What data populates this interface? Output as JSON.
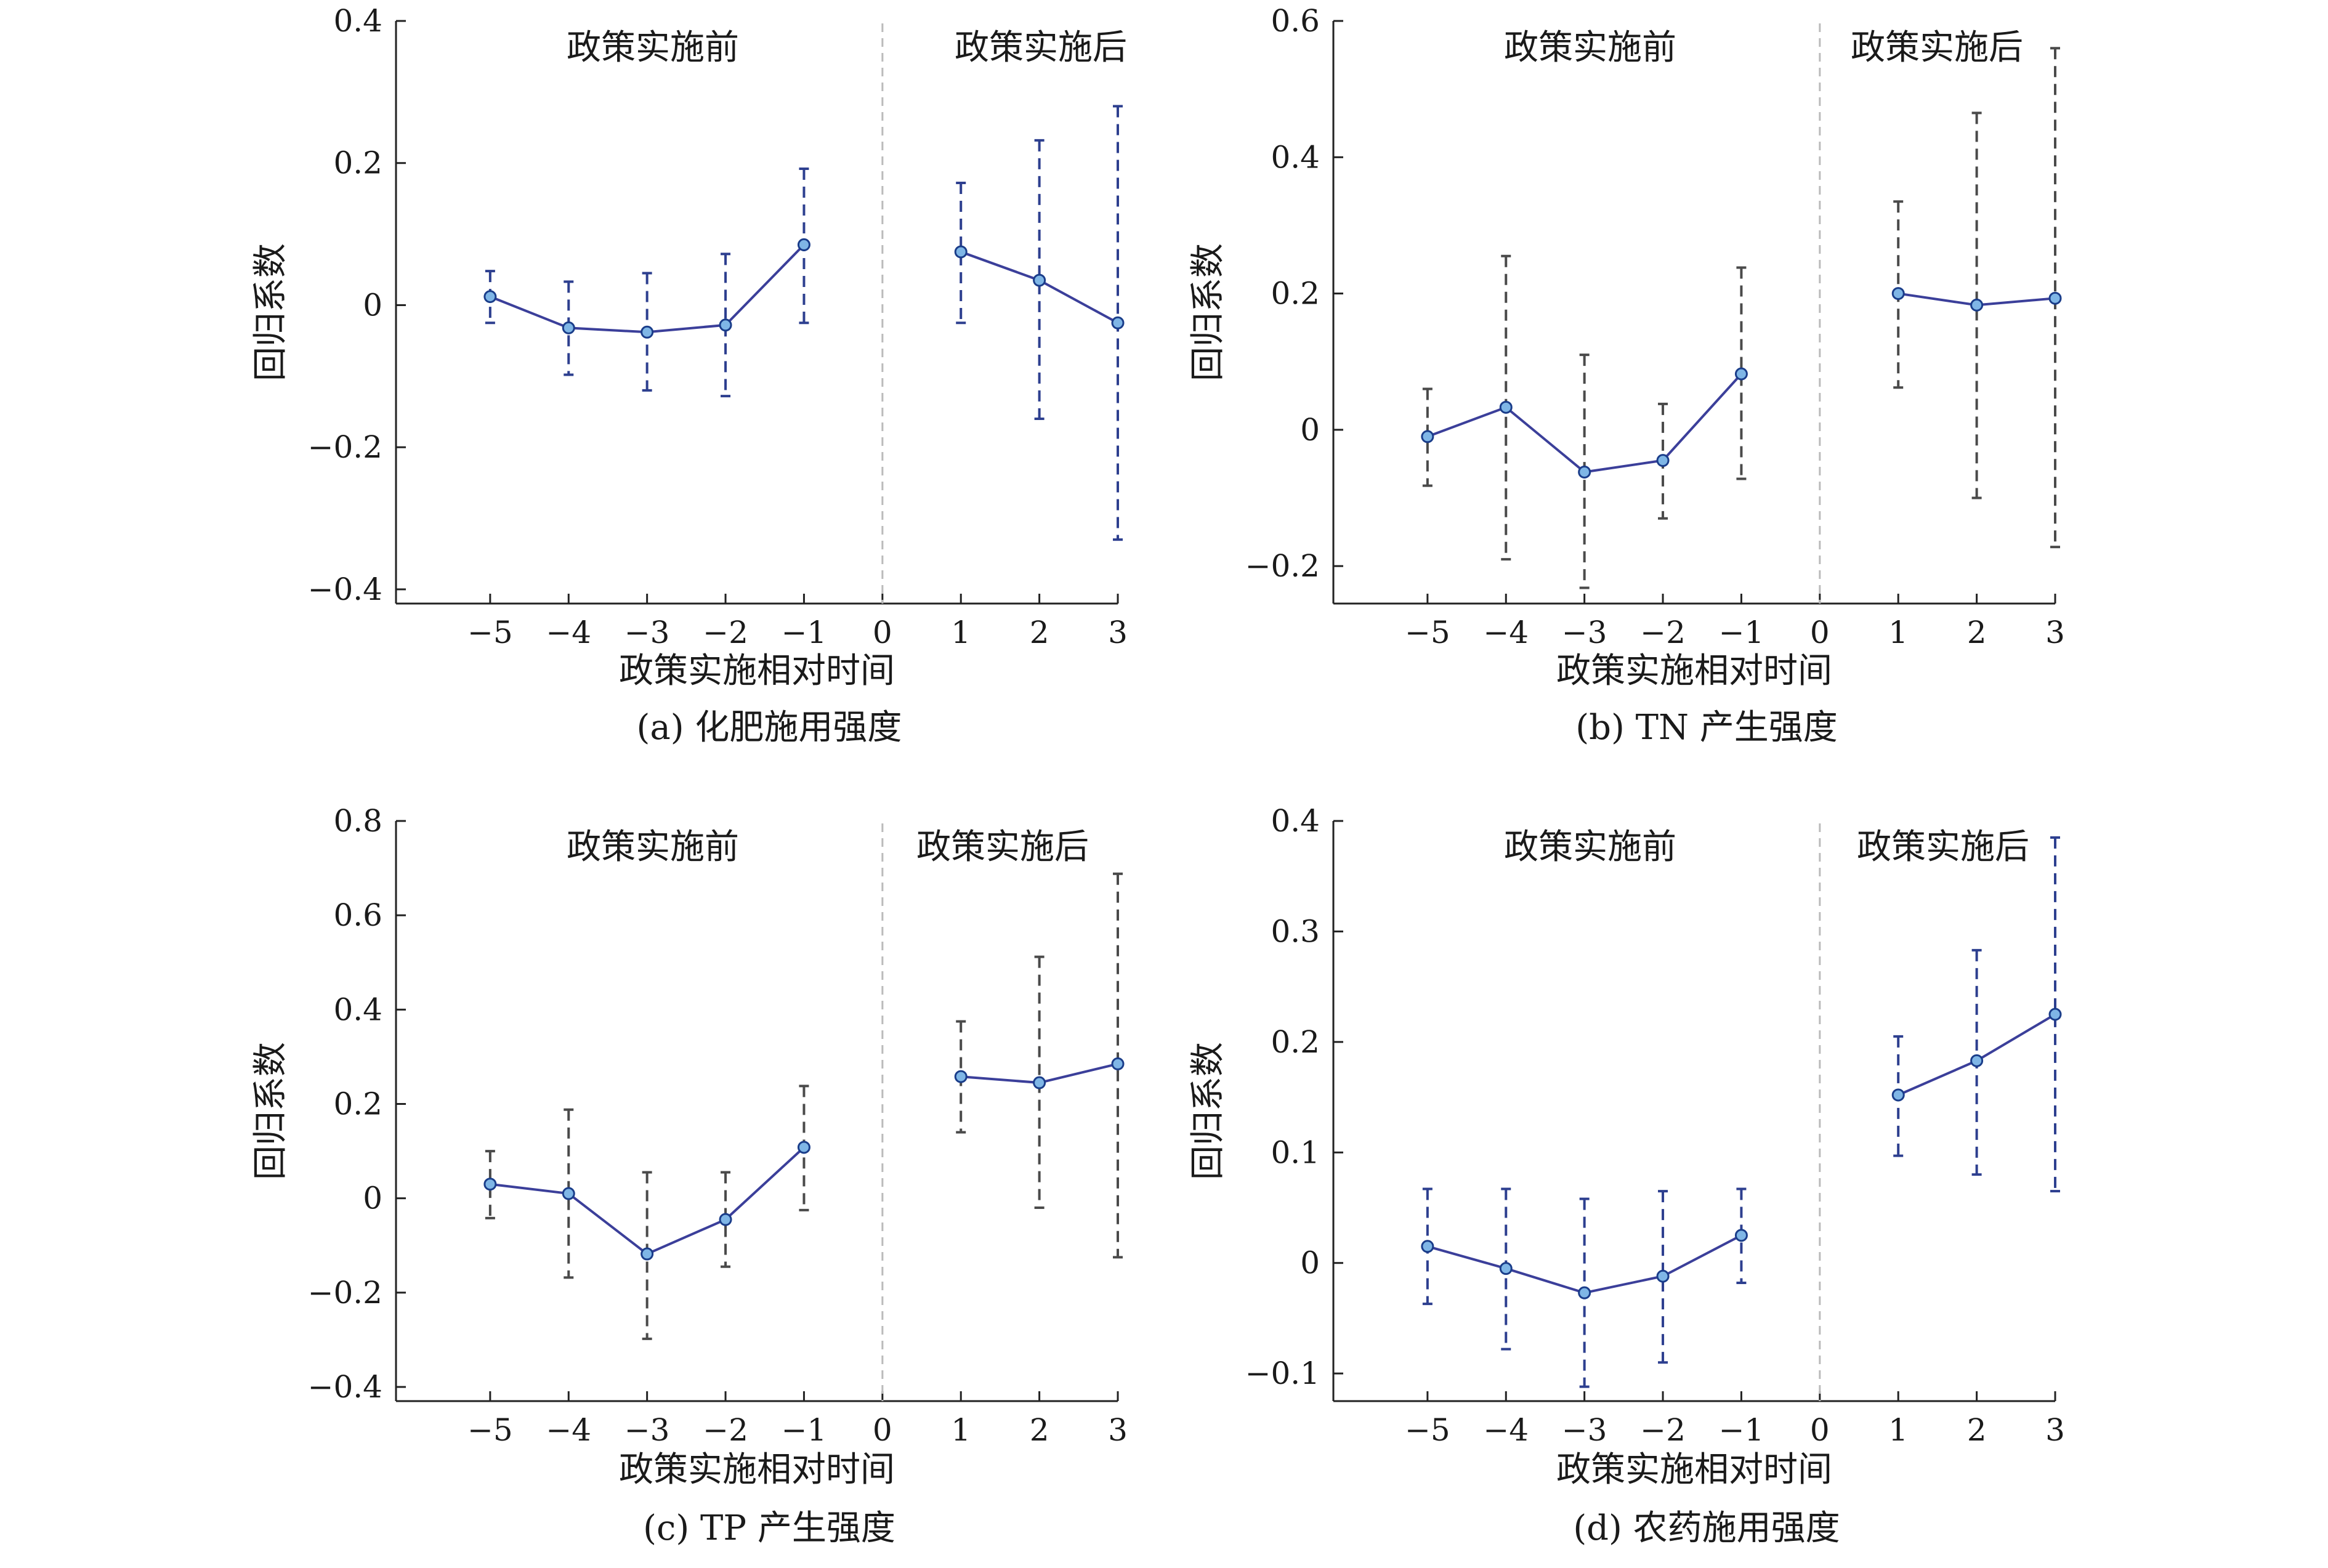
{
  "colors": {
    "line": "#3b3f9a",
    "ci_a": "#2d3f8f",
    "ci_b": "#4a4a4a",
    "point_stroke": "#1a3d8a",
    "point_fill": "#7fb6e6"
  },
  "chart_data": [
    {
      "type": "line",
      "caption": "(a) 化肥施用强度",
      "xlabel": "政策实施相对时间",
      "ylabel": "回归系数",
      "region_before": "政策实施前",
      "region_after": "政策实施后",
      "x_ticks": [
        "−5",
        "−4",
        "−3",
        "−2",
        "−1",
        "0",
        "1",
        "2",
        "3"
      ],
      "y_ticks": [
        {
          "value": 0.4,
          "label": "0.4"
        },
        {
          "value": 0.2,
          "label": "0.2"
        },
        {
          "value": 0,
          "label": "0"
        },
        {
          "value": -0.2,
          "label": "−0.2"
        },
        {
          "value": -0.4,
          "label": "−0.4"
        }
      ],
      "ylim": [
        -0.42,
        0.4
      ],
      "before": {
        "x": [
          -5,
          -4,
          -3,
          -2,
          -1
        ],
        "y": [
          0.012,
          -0.032,
          -0.038,
          -0.028,
          0.085
        ],
        "lower": [
          -0.025,
          -0.098,
          -0.12,
          -0.128,
          -0.025
        ],
        "upper": [
          0.048,
          0.033,
          0.045,
          0.072,
          0.192
        ]
      },
      "after": {
        "x": [
          1,
          2,
          3
        ],
        "y": [
          0.075,
          0.035,
          -0.025
        ],
        "lower": [
          -0.025,
          -0.16,
          -0.33
        ],
        "upper": [
          0.172,
          0.232,
          0.28
        ]
      }
    },
    {
      "type": "line",
      "caption": "(b) TN 产生强度",
      "xlabel": "政策实施相对时间",
      "ylabel": "回归系数",
      "region_before": "政策实施前",
      "region_after": "政策实施后",
      "x_ticks": [
        "−5",
        "−4",
        "−3",
        "−2",
        "−1",
        "0",
        "1",
        "2",
        "3"
      ],
      "y_ticks": [
        {
          "value": 0.6,
          "label": "0.6"
        },
        {
          "value": 0.4,
          "label": "0.4"
        },
        {
          "value": 0.2,
          "label": "0.2"
        },
        {
          "value": 0,
          "label": "0"
        },
        {
          "value": -0.2,
          "label": "−0.2"
        }
      ],
      "ylim": [
        -0.255,
        0.6
      ],
      "before": {
        "x": [
          -5,
          -4,
          -3,
          -2,
          -1
        ],
        "y": [
          -0.01,
          0.033,
          -0.062,
          -0.045,
          0.082
        ],
        "lower": [
          -0.082,
          -0.19,
          -0.232,
          -0.13,
          -0.072
        ],
        "upper": [
          0.06,
          0.255,
          0.11,
          0.038,
          0.238
        ]
      },
      "after": {
        "x": [
          1,
          2,
          3
        ],
        "y": [
          0.2,
          0.183,
          0.193
        ],
        "lower": [
          0.062,
          -0.1,
          -0.172
        ],
        "upper": [
          0.335,
          0.465,
          0.56
        ]
      }
    },
    {
      "type": "line",
      "caption": "(c) TP 产生强度",
      "xlabel": "政策实施相对时间",
      "ylabel": "回归系数",
      "region_before": "政策实施前",
      "region_after": "政策实施后",
      "x_ticks": [
        "−5",
        "−4",
        "−3",
        "−2",
        "−1",
        "0",
        "1",
        "2",
        "3"
      ],
      "y_ticks": [
        {
          "value": 0.8,
          "label": "0.8"
        },
        {
          "value": 0.6,
          "label": "0.6"
        },
        {
          "value": 0.4,
          "label": "0.4"
        },
        {
          "value": 0.2,
          "label": "0.2"
        },
        {
          "value": 0,
          "label": "0"
        },
        {
          "value": -0.2,
          "label": "−0.2"
        },
        {
          "value": -0.4,
          "label": "−0.4"
        }
      ],
      "ylim": [
        -0.43,
        0.8
      ],
      "before": {
        "x": [
          -5,
          -4,
          -3,
          -2,
          -1
        ],
        "y": [
          0.03,
          0.01,
          -0.118,
          -0.045,
          0.108
        ],
        "lower": [
          -0.042,
          -0.168,
          -0.298,
          -0.145,
          -0.025
        ],
        "upper": [
          0.1,
          0.188,
          0.055,
          0.055,
          0.238
        ]
      },
      "after": {
        "x": [
          1,
          2,
          3
        ],
        "y": [
          0.258,
          0.245,
          0.285
        ],
        "lower": [
          0.14,
          -0.02,
          -0.125
        ],
        "upper": [
          0.375,
          0.512,
          0.688
        ]
      }
    },
    {
      "type": "line",
      "caption": "(d) 农药施用强度",
      "xlabel": "政策实施相对时间",
      "ylabel": "回归系数",
      "region_before": "政策实施前",
      "region_after": "政策实施后",
      "x_ticks": [
        "−5",
        "−4",
        "−3",
        "−2",
        "−1",
        "0",
        "1",
        "2",
        "3"
      ],
      "y_ticks": [
        {
          "value": 0.4,
          "label": "0.4"
        },
        {
          "value": 0.3,
          "label": "0.3"
        },
        {
          "value": 0.2,
          "label": "0.2"
        },
        {
          "value": 0.1,
          "label": "0.1"
        },
        {
          "value": 0,
          "label": "0"
        },
        {
          "value": -0.1,
          "label": "−0.1"
        }
      ],
      "ylim": [
        -0.125,
        0.4
      ],
      "before": {
        "x": [
          -5,
          -4,
          -3,
          -2,
          -1
        ],
        "y": [
          0.015,
          -0.005,
          -0.027,
          -0.012,
          0.025
        ],
        "lower": [
          -0.037,
          -0.078,
          -0.112,
          -0.09,
          -0.018
        ],
        "upper": [
          0.067,
          0.067,
          0.058,
          0.065,
          0.067
        ]
      },
      "after": {
        "x": [
          1,
          2,
          3
        ],
        "y": [
          0.152,
          0.183,
          0.225
        ],
        "lower": [
          0.097,
          0.08,
          0.065
        ],
        "upper": [
          0.205,
          0.283,
          0.385
        ]
      }
    }
  ]
}
